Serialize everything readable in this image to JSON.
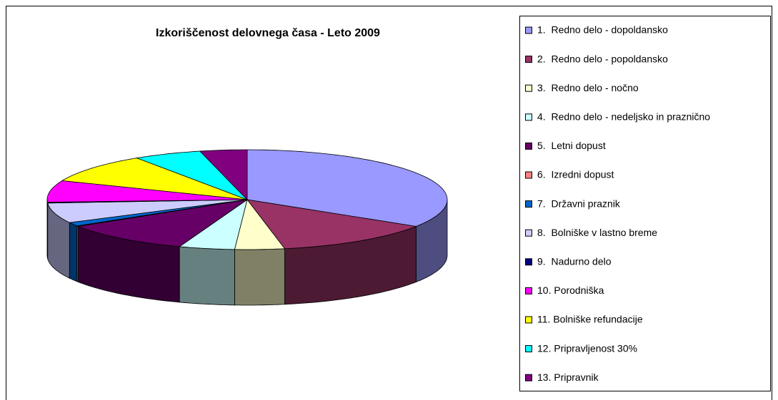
{
  "chart_data": {
    "type": "pie3d",
    "title": "Izkoriščenost delovnega časa - Leto 2009",
    "categories": [
      "1.  Redno delo - dopoldansko",
      "2.  Redno delo - popoldansko",
      "3.  Redno delo - nočno",
      "4.  Redno delo - nedeljsko in praznično",
      "5.  Letni dopust",
      "6.  Izredni dopust",
      "7.  Državni praznik",
      "8.  Bolniške v lastno breme",
      "9.  Nadurno delo",
      "10. Porodniška",
      "11. Bolniške refundacije",
      "12. Pripravljenost 30%",
      "13. Pripravnik"
    ],
    "values": [
      34,
      13,
      4,
      4.5,
      10.5,
      0.2,
      1.2,
      6.5,
      0.3,
      7,
      9.5,
      5.5,
      3.8
    ],
    "colors": [
      "#9999ff",
      "#993366",
      "#ffffcc",
      "#ccffff",
      "#660066",
      "#ff8080",
      "#0066cc",
      "#ccccff",
      "#000080",
      "#ff00ff",
      "#ffff00",
      "#00ffff",
      "#800080"
    ],
    "legend": "right"
  }
}
